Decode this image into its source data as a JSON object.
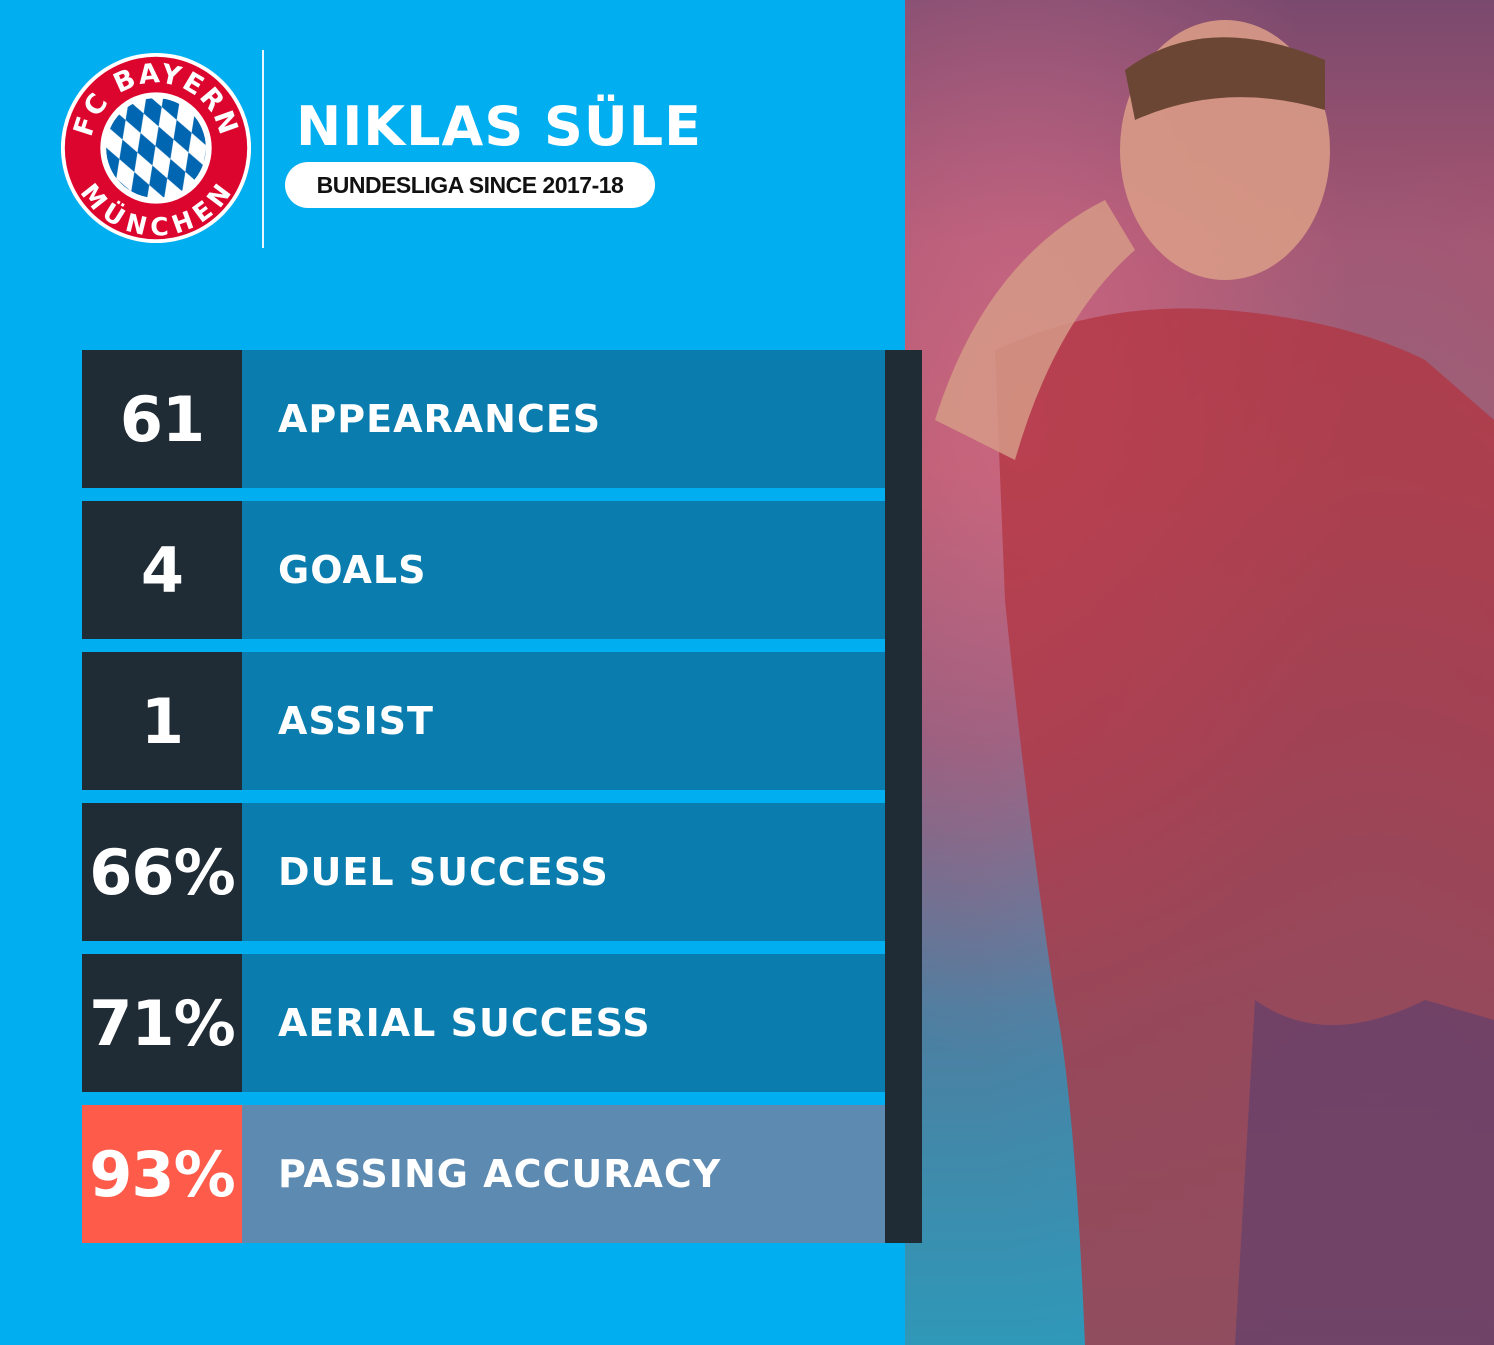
{
  "header": {
    "player_name": "NIKLAS SÜLE",
    "subtitle": "BUNDESLIGA SINCE 2017-18",
    "logo": {
      "text_top": "FC BAYERN",
      "text_bottom": "MÜNCHEN",
      "ring_color": "#dc052d",
      "diamond_color": "#0066b2"
    }
  },
  "stats": [
    {
      "value": "61",
      "label": "APPEARANCES"
    },
    {
      "value": "4",
      "label": "GOALS"
    },
    {
      "value": "1",
      "label": "ASSIST"
    },
    {
      "value": "66%",
      "label": "DUEL SUCCESS"
    },
    {
      "value": "71%",
      "label": "AERIAL SUCCESS"
    },
    {
      "value": "93%",
      "label": "PASSING ACCURACY",
      "highlight": true
    }
  ],
  "colors": {
    "background": "#01aeef",
    "number_box": "#1f2b35",
    "label_box": "#0a7dae",
    "highlight_number": "#ff5b4a",
    "highlight_label": "#5d8ab1"
  }
}
